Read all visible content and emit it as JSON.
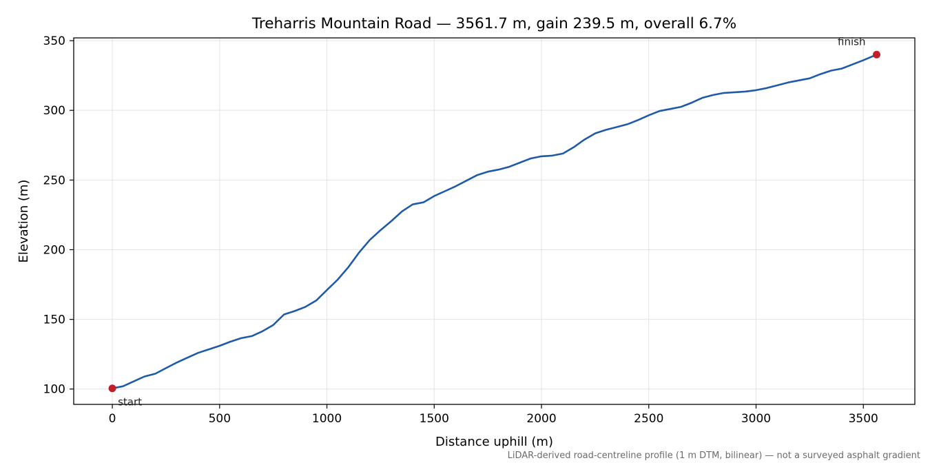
{
  "chart_data": {
    "type": "line",
    "title": "Treharris Mountain Road — 3561.7 m, gain 239.5 m, overall 6.7%",
    "xlabel": "Distance uphill (m)",
    "ylabel": "Elevation (m)",
    "caption": "LiDAR-derived road-centreline profile (1 m DTM, bilinear) — not a surveyed asphalt gradient",
    "xlim": [
      -180,
      3740
    ],
    "ylim": [
      89,
      352
    ],
    "x_ticks": [
      0,
      500,
      1000,
      1500,
      2000,
      2500,
      3000,
      3500
    ],
    "y_ticks": [
      100,
      150,
      200,
      250,
      300,
      350
    ],
    "grid": true,
    "colors": {
      "line": "#1f5aa8",
      "marker": "#c01f2a"
    },
    "series": [
      {
        "x": [
          0,
          50,
          100,
          150,
          200,
          250,
          300,
          350,
          400,
          450,
          500,
          550,
          600,
          650,
          700,
          750,
          800,
          850,
          900,
          950,
          1000,
          1050,
          1100,
          1150,
          1200,
          1250,
          1300,
          1350,
          1400,
          1450,
          1500,
          1550,
          1600,
          1650,
          1700,
          1750,
          1800,
          1850,
          1900,
          1950,
          2000,
          2050,
          2100,
          2150,
          2200,
          2250,
          2300,
          2350,
          2400,
          2450,
          2500,
          2550,
          2600,
          2650,
          2700,
          2750,
          2800,
          2850,
          2900,
          2950,
          3000,
          3050,
          3100,
          3150,
          3200,
          3250,
          3300,
          3350,
          3400,
          3450,
          3500,
          3561.7
        ],
        "y": [
          100.5,
          102,
          105.5,
          109,
          111,
          115,
          119,
          122.5,
          126,
          128.5,
          131,
          134,
          136.5,
          138,
          141.5,
          146,
          153.5,
          156,
          159,
          163.5,
          171,
          178.5,
          187.5,
          198,
          207,
          214,
          220.5,
          227.5,
          232.5,
          234,
          238.5,
          242,
          245.5,
          249.5,
          253.5,
          256,
          257.5,
          259.5,
          262.5,
          265.5,
          267,
          267.5,
          269,
          273.5,
          279,
          283.5,
          286,
          288,
          290,
          293,
          296.5,
          299.5,
          301,
          302.5,
          305.5,
          309,
          311,
          312.5,
          313,
          313.5,
          314.5,
          316,
          318,
          320,
          321.5,
          323,
          326,
          328.5,
          330,
          333,
          336,
          340
        ]
      }
    ],
    "annotations": [
      {
        "text": "start",
        "x": 0,
        "y": 100.5
      },
      {
        "text": "finish",
        "x": 3561.7,
        "y": 340
      }
    ]
  }
}
